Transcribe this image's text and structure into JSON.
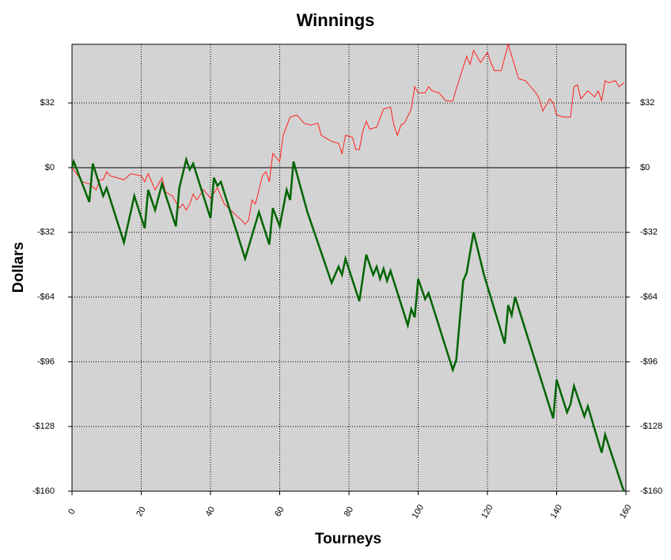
{
  "chart_data": {
    "type": "line",
    "title": "Winnings",
    "x_label": "Tourneys",
    "y_label": "Dollars",
    "xlim": [
      0,
      160
    ],
    "xticks": [
      0,
      20,
      40,
      60,
      80,
      100,
      120,
      140,
      160
    ],
    "ylim": [
      -160,
      61
    ],
    "yticks": [
      {
        "value": -160,
        "label": "-$160"
      },
      {
        "value": -128,
        "label": "-$128"
      },
      {
        "value": -96,
        "label": "-$96"
      },
      {
        "value": -64,
        "label": "-$64"
      },
      {
        "value": -32,
        "label": "-$32"
      },
      {
        "value": 0,
        "label": "$0"
      },
      {
        "value": 32,
        "label": "$32"
      }
    ],
    "grid": true,
    "background": "#d3d3d3",
    "series": [
      {
        "color": "#ff2020",
        "x": [
          0,
          3,
          5,
          7,
          8,
          9,
          10,
          11,
          15,
          17,
          20,
          21,
          22,
          23,
          24,
          26,
          27,
          29,
          31,
          32,
          33,
          34,
          35,
          36,
          38,
          40,
          42,
          44,
          47,
          49,
          50,
          51,
          52,
          53,
          55,
          56,
          57,
          58,
          60,
          61,
          63,
          65,
          67,
          69,
          71,
          72,
          74,
          75,
          77,
          78,
          79,
          81,
          82,
          83,
          84,
          85,
          86,
          88,
          90,
          92,
          93,
          94,
          95,
          96,
          98,
          99,
          100,
          102,
          103,
          104,
          106,
          108,
          110,
          111,
          114,
          115,
          116,
          118,
          120,
          121,
          122,
          124,
          126,
          129,
          131,
          134,
          135,
          136,
          138,
          139,
          140,
          142,
          144,
          145,
          146,
          147,
          149,
          151,
          152,
          153,
          154,
          155,
          157,
          158,
          159.5
        ],
        "values": [
          0,
          -7,
          -8,
          -11,
          -6,
          -6,
          -2,
          -4,
          -6,
          -3,
          -4,
          -7,
          -3,
          -7,
          -11,
          -5,
          -12,
          -14,
          -20,
          -18,
          -21,
          -18,
          -13,
          -16,
          -11,
          -15,
          -10,
          -18,
          -23,
          -26,
          -28,
          -26,
          -16,
          -18,
          -4,
          -2,
          -7,
          7,
          3,
          16,
          25,
          26,
          22,
          21,
          22,
          16,
          14,
          13,
          12,
          7,
          16,
          15,
          9,
          9,
          18,
          23,
          19,
          20,
          29,
          30,
          21,
          16,
          21,
          22,
          29,
          40,
          37,
          37,
          40,
          38,
          37,
          33,
          33,
          39,
          55,
          51,
          58,
          52,
          57,
          52,
          48,
          48,
          61,
          44,
          43,
          37,
          34,
          28,
          34,
          32,
          26,
          25,
          25,
          40,
          41,
          34,
          38,
          35,
          38,
          33,
          43,
          42,
          43,
          40,
          42
        ]
      },
      {
        "color": "#006400",
        "x": [
          0,
          0.5,
          5,
          6,
          9,
          10,
          15,
          18,
          21,
          22,
          24,
          26,
          30,
          31,
          33,
          34,
          35,
          40,
          41,
          42,
          43,
          50,
          54,
          57,
          58,
          60,
          62,
          63,
          64,
          68,
          74,
          75,
          77,
          78,
          79,
          83,
          85,
          87,
          88,
          89,
          90,
          91,
          92,
          97,
          98,
          99,
          100,
          102,
          103,
          110,
          111,
          113,
          114,
          116,
          119,
          125,
          126,
          127,
          128,
          139,
          140,
          143,
          144,
          145,
          148,
          149,
          153,
          154,
          159,
          159.5
        ],
        "values": [
          0,
          3,
          -17,
          2,
          -14,
          -10,
          -37,
          -14,
          -30,
          -11,
          -21,
          -8,
          -29,
          -10,
          4,
          -1,
          2,
          -25,
          -5,
          -9,
          -7,
          -45,
          -22,
          -38,
          -20,
          -29,
          -11,
          -16,
          3,
          -22,
          -52,
          -57,
          -49,
          -53,
          -45,
          -66,
          -43,
          -53,
          -49,
          -55,
          -50,
          -56,
          -51,
          -78,
          -70,
          -74,
          -55,
          -65,
          -62,
          -100,
          -95,
          -56,
          -52,
          -32,
          -53,
          -87,
          -68,
          -73,
          -64,
          -124,
          -105,
          -121,
          -117,
          -108,
          -123,
          -118,
          -141,
          -132,
          -158,
          -160
        ]
      }
    ]
  }
}
